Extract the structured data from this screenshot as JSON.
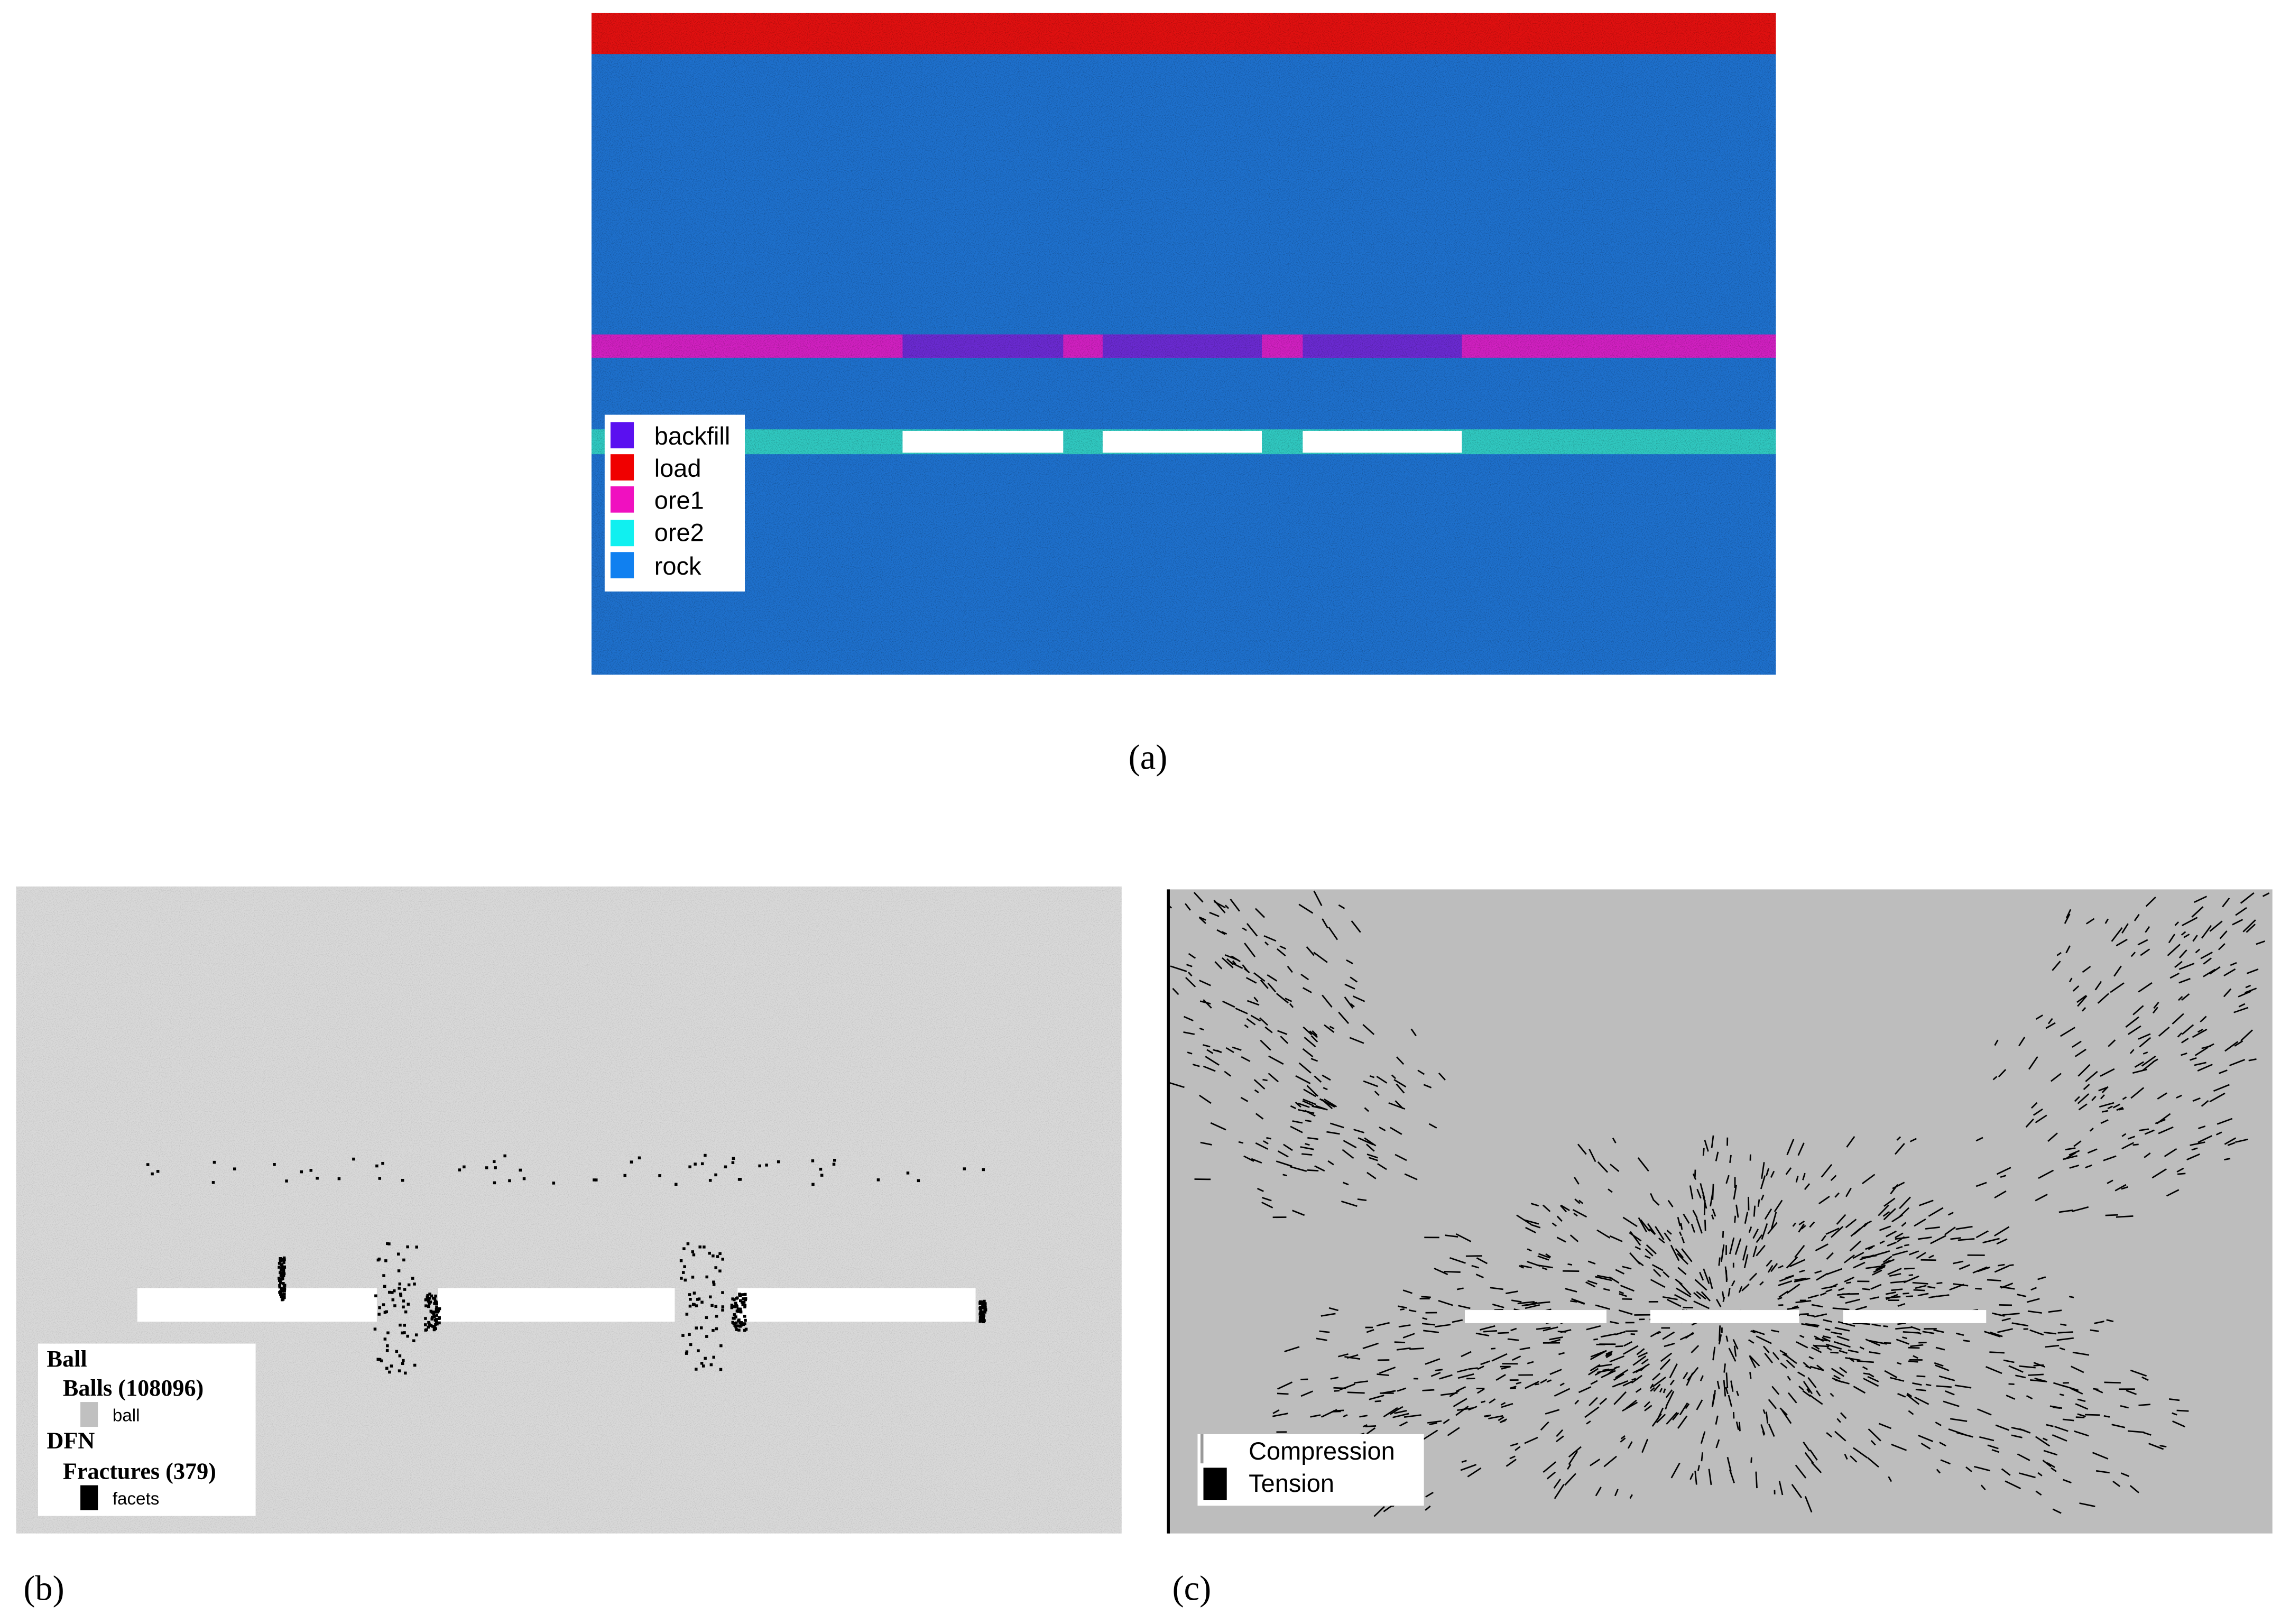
{
  "panels": [
    {
      "label": "(a)",
      "legend": [
        "backfill",
        "load",
        "ore1",
        "ore2",
        "rock"
      ]
    },
    {
      "label": "(b)",
      "legend": [
        "Ball",
        "Balls (108096)",
        "ball",
        "DFN",
        "Fractures (379)",
        "facets"
      ]
    },
    {
      "label": "(c)",
      "legend": [
        "Compression",
        "Tension"
      ]
    }
  ]
}
